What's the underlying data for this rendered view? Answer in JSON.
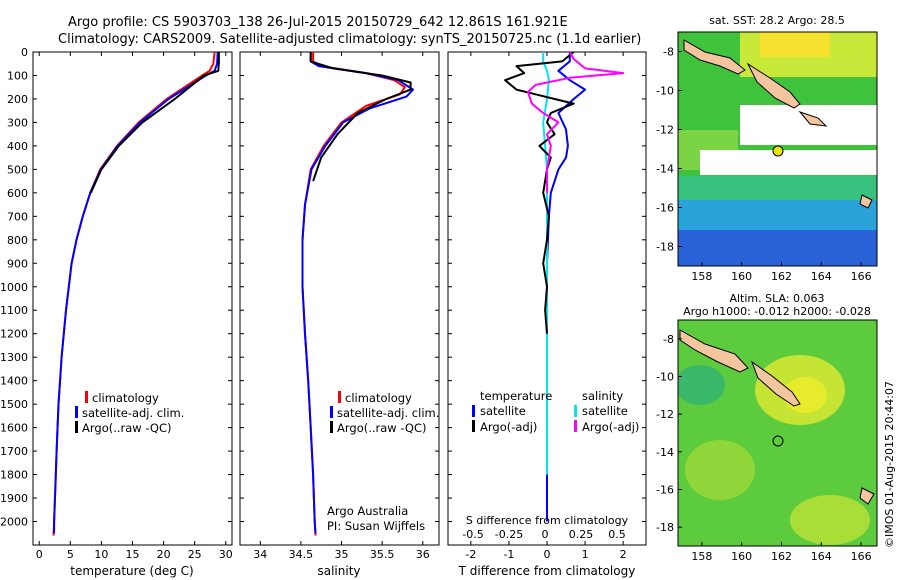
{
  "header": {
    "line1": "Argo profile: CS 5903703_138 26-Jul-2015 20150729_642 12.861S 161.921E",
    "line2": "Climatology: CARS2009. Satellite-adjusted climatology: synTS_20150725.nc (1.1d earlier)"
  },
  "depth_ticks": [
    "0",
    "100",
    "200",
    "300",
    "400",
    "500",
    "600",
    "700",
    "800",
    "900",
    "1000",
    "1100",
    "1200",
    "1300",
    "1400",
    "1500",
    "1600",
    "1700",
    "1800",
    "1900",
    "2000"
  ],
  "colors": {
    "climatology": "#ff0000",
    "satellite": "#0000ff",
    "argo": "#000000",
    "cyan": "#00e5ee",
    "magenta": "#ff00ff"
  },
  "chart_data": [
    {
      "type": "line",
      "panel": "temperature",
      "xlabel": "temperature (deg C)",
      "ylabel": "",
      "xlim": [
        -1,
        31
      ],
      "ylim": [
        2100,
        0
      ],
      "xticks": [
        0,
        5,
        10,
        15,
        20,
        25,
        30
      ],
      "legend": [
        "climatology",
        "satellite-adj. clim.",
        "Argo(..raw -QC)"
      ],
      "legend_position": "lower-right",
      "series": [
        {
          "name": "climatology",
          "color": "#ff0000",
          "x": [
            28.2,
            28.0,
            27.4,
            26.2,
            20.5,
            16.0,
            12.5,
            9.8,
            8.2,
            7.0,
            6.0,
            5.2,
            4.3,
            3.6,
            3.1,
            2.8,
            2.6,
            2.4,
            2.3
          ],
          "y": [
            0,
            50,
            80,
            100,
            200,
            300,
            400,
            500,
            600,
            700,
            800,
            900,
            1100,
            1300,
            1500,
            1700,
            1850,
            2000,
            2060
          ]
        },
        {
          "name": "satellite-adj. clim.",
          "color": "#0000ff",
          "x": [
            28.7,
            28.6,
            28.2,
            26.8,
            20.8,
            16.2,
            12.6,
            9.9,
            8.2,
            7.0,
            6.0,
            5.2,
            4.3,
            3.6,
            3.1,
            2.8,
            2.6,
            2.4,
            2.4
          ],
          "y": [
            0,
            50,
            80,
            100,
            200,
            300,
            400,
            500,
            600,
            700,
            800,
            900,
            1100,
            1300,
            1500,
            1700,
            1850,
            2000,
            2050
          ]
        },
        {
          "name": "Argo(..raw -QC)",
          "color": "#000000",
          "x": [
            28.9,
            28.9,
            28.8,
            26.5,
            21.8,
            16.6,
            12.8,
            10.0,
            8.3
          ],
          "y": [
            0,
            40,
            80,
            100,
            200,
            300,
            400,
            500,
            600
          ]
        }
      ]
    },
    {
      "type": "line",
      "panel": "salinity",
      "xlabel": "salinity",
      "xlim": [
        33.75,
        36.2
      ],
      "ylim": [
        2100,
        0
      ],
      "xticks": [
        34,
        34.5,
        35,
        35.5,
        36
      ],
      "legend": [
        "climatology",
        "satellite-adj. clim.",
        "Argo(..raw -QC)"
      ],
      "legend_position": "lower-right",
      "annotations": [
        "Argo Australia",
        "PI: Susan Wijffels"
      ],
      "series": [
        {
          "name": "climatology",
          "color": "#ff0000",
          "x": [
            34.65,
            34.65,
            34.75,
            35.3,
            35.65,
            35.78,
            35.72,
            35.3,
            35.0,
            34.78,
            34.62,
            34.55,
            34.52,
            34.52,
            34.55,
            34.59,
            34.62,
            34.65,
            34.67,
            34.68
          ],
          "y": [
            0,
            40,
            60,
            90,
            120,
            150,
            180,
            230,
            300,
            400,
            500,
            650,
            800,
            1000,
            1200,
            1400,
            1600,
            1800,
            2000,
            2060
          ]
        },
        {
          "name": "satellite-adj. clim.",
          "color": "#0000ff",
          "x": [
            34.62,
            34.62,
            34.72,
            35.3,
            35.7,
            35.88,
            35.8,
            35.35,
            35.02,
            34.8,
            34.63,
            34.55,
            34.52,
            34.52,
            34.55,
            34.59,
            34.62,
            34.65,
            34.67,
            34.68
          ],
          "y": [
            0,
            40,
            60,
            90,
            120,
            160,
            190,
            240,
            300,
            400,
            500,
            650,
            800,
            1000,
            1200,
            1400,
            1600,
            1800,
            2000,
            2050
          ]
        },
        {
          "name": "Argo(..raw -QC)",
          "color": "#000000",
          "x": [
            34.62,
            34.62,
            34.9,
            35.5,
            35.85,
            35.85,
            35.55,
            35.2,
            34.95,
            34.75,
            34.65
          ],
          "y": [
            0,
            40,
            70,
            100,
            130,
            160,
            200,
            260,
            350,
            450,
            550
          ]
        }
      ]
    },
    {
      "type": "line",
      "panel": "difference",
      "xlabel": "T difference from climatology",
      "xlabel_top": "S difference from climatology",
      "xlim": [
        -2.6,
        2.6
      ],
      "ylim": [
        2100,
        0
      ],
      "xticks": [
        -2,
        -1,
        0,
        1,
        2
      ],
      "top_ticks": [
        "-0.5",
        "-0.25",
        "0",
        "0.25",
        "0.5"
      ],
      "legend_temperature": {
        "title": "temperature",
        "items": [
          "satellite",
          "Argo(-adj)"
        ]
      },
      "legend_salinity": {
        "title": "salinity",
        "items": [
          "satellite",
          "Argo(-adj)"
        ]
      },
      "series": [
        {
          "name": "T satellite",
          "color": "#0000ff",
          "x": [
            0.6,
            0.6,
            0.3,
            0.6,
            1.0,
            0.7,
            0.3,
            0.5,
            0.55,
            0.5,
            0.3,
            0.1,
            0.05,
            0.0,
            0.0,
            0.0
          ],
          "y": [
            0,
            40,
            80,
            120,
            160,
            200,
            260,
            330,
            400,
            450,
            500,
            600,
            700,
            900,
            1400,
            2000
          ]
        },
        {
          "name": "S satellite",
          "color": "#00e5ee",
          "x": [
            -0.1,
            -0.1,
            0.0,
            0.05,
            0.0,
            -0.1,
            0.0,
            0.0,
            0.0
          ],
          "y": [
            0,
            40,
            80,
            120,
            200,
            300,
            500,
            1000,
            1800
          ]
        },
        {
          "name": "T Argo(-adj)",
          "color": "#000000",
          "x": [
            0.7,
            0.4,
            -0.8,
            -0.6,
            -1.1,
            -0.8,
            -0.3,
            0.2,
            0.7,
            0.1,
            0.0,
            0.2,
            -0.2,
            0.1,
            0.0,
            -0.1,
            0.05,
            0.0,
            -0.1,
            0.0,
            -0.05,
            0.0
          ],
          "y": [
            0,
            40,
            60,
            90,
            120,
            160,
            180,
            200,
            220,
            260,
            300,
            350,
            400,
            450,
            500,
            600,
            700,
            800,
            900,
            1000,
            1100,
            1200
          ]
        },
        {
          "name": "S Argo(-adj)",
          "color": "#ff00ff",
          "x": [
            0.6,
            0.7,
            1.0,
            2.0,
            0.6,
            -0.3,
            -0.5,
            -0.4,
            -0.1,
            0.3,
            0.0,
            0.1,
            0.0,
            0.0
          ],
          "y": [
            0,
            30,
            70,
            90,
            110,
            140,
            170,
            220,
            260,
            300,
            350,
            400,
            500,
            600
          ]
        }
      ]
    }
  ],
  "maps": {
    "top": {
      "title": "sat. SST: 28.2  Argo: 28.5",
      "yticks": [
        "-8",
        "-10",
        "-12",
        "-14",
        "-16",
        "-18"
      ],
      "xticks": [
        "158",
        "160",
        "162",
        "164",
        "166"
      ]
    },
    "bottom": {
      "title1": "Altim. SLA: 0.063",
      "title2": "Argo h1000: -0.012 h2000: -0.028",
      "yticks": [
        "-8",
        "-10",
        "-12",
        "-14",
        "-16",
        "-18"
      ],
      "xticks": [
        "158",
        "160",
        "162",
        "164",
        "166"
      ]
    }
  },
  "watermark": "©IMOS 01-Aug-2015 20:44:07"
}
